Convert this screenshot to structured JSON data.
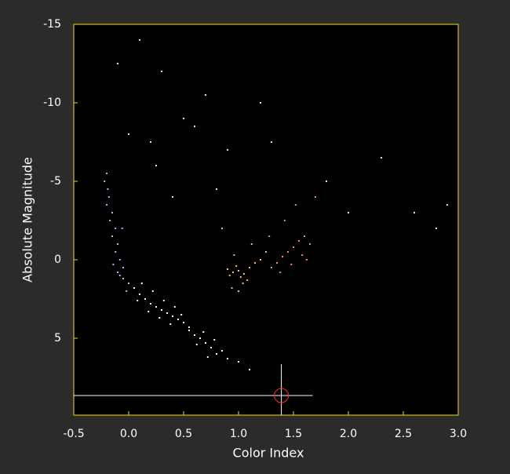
{
  "chart_data": {
    "type": "scatter",
    "x_label": "Color Index",
    "y_label": "Absolute Magnitude",
    "xlim": [
      -0.5,
      3.0
    ],
    "ylim": [
      -15,
      9.9
    ],
    "y_inverted": true,
    "xticks": [
      -0.5,
      {
        "value": 0,
        "label": "0.0"
      },
      0.5,
      {
        "value": 1,
        "label": "1.0"
      },
      1.5,
      {
        "value": 2,
        "label": "2.0"
      },
      2.5,
      {
        "value": 3,
        "label": "3.0"
      }
    ],
    "yticks": [
      -15,
      -10,
      -5,
      0,
      5
    ],
    "frame_color": "#e8e020",
    "series": [
      {
        "color": "#aabbff",
        "x": [
          -0.2,
          -0.18,
          -0.15,
          -0.12,
          -0.1,
          -0.08,
          -0.05,
          -0.15,
          -0.2,
          -0.22,
          -0.1,
          -0.05,
          0.0,
          -0.12,
          -0.17,
          -0.08,
          -0.02,
          -0.19,
          -0.14,
          -0.06
        ],
        "y": [
          -5.5,
          -4,
          -3,
          -2,
          -1,
          0,
          0.5,
          -1.5,
          -3.5,
          -5,
          0.8,
          1.2,
          1.5,
          -0.5,
          -2.5,
          1.0,
          2.0,
          -4.5,
          0.3,
          -2
        ]
      },
      {
        "color": "#ffffff",
        "x": [
          0.05,
          0.1,
          0.15,
          0.2,
          0.25,
          0.3,
          0.35,
          0.4,
          0.45,
          0.5,
          0.12,
          0.22,
          0.32,
          0.42,
          0.18,
          0.28,
          0.38,
          0.08,
          0.48,
          0.55
        ],
        "y": [
          1.8,
          2.2,
          2.5,
          2.8,
          3.0,
          3.2,
          3.4,
          3.6,
          3.8,
          4.0,
          1.5,
          2.0,
          2.6,
          3.0,
          3.3,
          3.7,
          4.1,
          2.6,
          3.5,
          4.3
        ]
      },
      {
        "color": "#ffffc8",
        "x": [
          0.55,
          0.6,
          0.65,
          0.7,
          0.75,
          0.8,
          0.68,
          0.62,
          0.72,
          0.85,
          0.9,
          0.78,
          1.0,
          1.1
        ],
        "y": [
          4.5,
          4.8,
          5.0,
          5.3,
          5.6,
          6.0,
          4.6,
          5.4,
          6.2,
          5.8,
          6.3,
          5.1,
          6.5,
          7.0
        ]
      },
      {
        "color": "#ffbb66",
        "x": [
          0.9,
          0.95,
          1.0,
          1.05,
          1.1,
          0.98,
          1.02,
          0.92,
          1.08,
          1.15,
          1.2,
          0.96,
          1.04,
          1.0,
          1.12,
          0.85,
          1.25,
          0.94
        ],
        "y": [
          0.6,
          0.8,
          0.7,
          0.9,
          0.5,
          0.4,
          1.1,
          1.0,
          1.3,
          0.2,
          0.0,
          -0.3,
          1.5,
          2.0,
          -1.0,
          -2.0,
          -0.5,
          1.8
        ]
      },
      {
        "color": "#ff8866",
        "x": [
          1.3,
          1.35,
          1.4,
          1.45,
          1.5,
          1.55,
          1.6,
          1.38,
          1.48,
          1.58,
          1.42,
          1.52,
          1.65,
          1.7,
          1.28,
          1.62
        ],
        "y": [
          0.5,
          0.2,
          -0.2,
          -0.5,
          -0.8,
          -1.2,
          -1.5,
          0.8,
          0.3,
          -0.3,
          -2.5,
          -3.5,
          -1.0,
          -4.0,
          -1.5,
          0.0
        ]
      },
      {
        "color": "#ffe0c0",
        "x": [
          0.1,
          0.3,
          0.5,
          0.7,
          0.2,
          -0.1,
          0.0,
          0.25,
          0.6,
          0.9,
          1.2,
          1.8,
          2.0,
          2.3,
          2.6,
          2.8,
          2.9,
          0.4,
          0.8,
          1.3
        ],
        "y": [
          -14,
          -12,
          -9,
          -10.5,
          -7.5,
          -12.5,
          -8,
          -6,
          -8.5,
          -7,
          -10,
          -5,
          -3,
          -6.5,
          -3,
          -2,
          -3.5,
          -4,
          -4.5,
          -7.5
        ]
      }
    ],
    "cursor": {
      "x": 1.39,
      "y": 8.65,
      "color": "#ff3030"
    }
  }
}
